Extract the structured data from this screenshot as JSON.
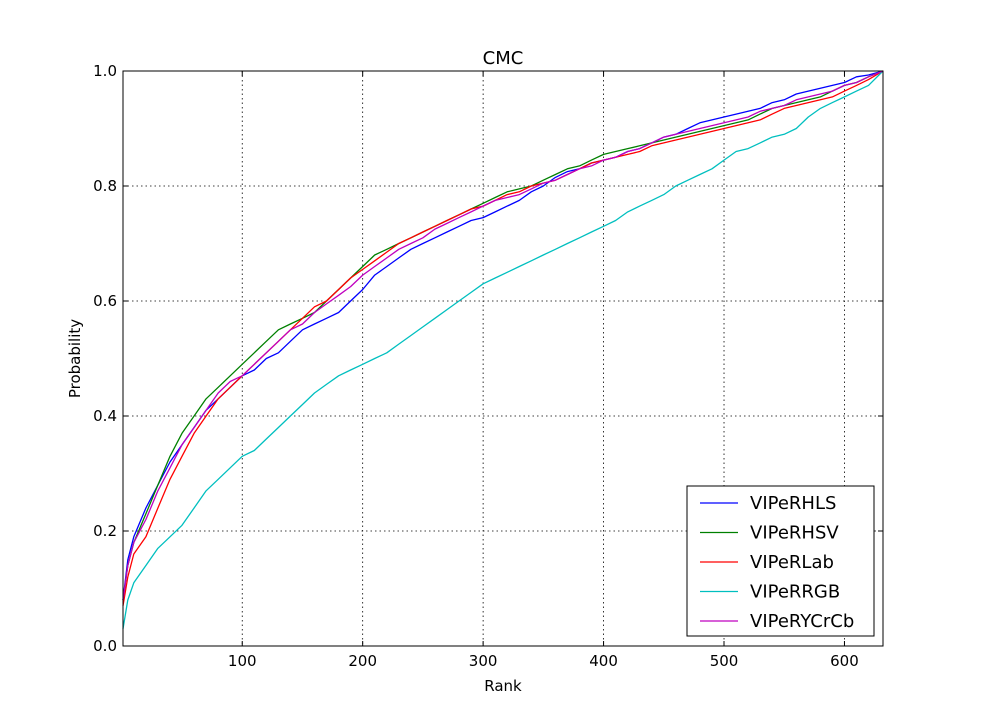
{
  "chart_data": {
    "type": "line",
    "title": "CMC",
    "xlabel": "Rank",
    "ylabel": "Probability",
    "xlim": [
      1,
      632
    ],
    "ylim": [
      0.0,
      1.0
    ],
    "xticks": [
      100,
      200,
      300,
      400,
      500,
      600
    ],
    "xtick_labels": [
      "100",
      "200",
      "300",
      "400",
      "500",
      "600"
    ],
    "yticks": [
      0.0,
      0.2,
      0.4,
      0.6,
      0.8,
      1.0
    ],
    "ytick_labels": [
      "0.0",
      "0.2",
      "0.4",
      "0.6",
      "0.8",
      "1.0"
    ],
    "grid": true,
    "legend_position": "lower-right",
    "series": [
      {
        "name": "VIPeRHLS",
        "color": "#0000ff",
        "x": [
          1,
          5,
          10,
          20,
          30,
          40,
          50,
          60,
          70,
          80,
          90,
          100,
          110,
          120,
          130,
          140,
          150,
          160,
          170,
          180,
          190,
          200,
          210,
          220,
          230,
          240,
          250,
          260,
          270,
          280,
          290,
          300,
          310,
          320,
          330,
          340,
          350,
          360,
          370,
          380,
          390,
          400,
          410,
          420,
          430,
          440,
          450,
          460,
          470,
          480,
          490,
          500,
          510,
          520,
          530,
          540,
          550,
          560,
          570,
          580,
          590,
          600,
          610,
          620,
          632
        ],
        "y": [
          0.08,
          0.15,
          0.19,
          0.24,
          0.28,
          0.32,
          0.35,
          0.38,
          0.41,
          0.43,
          0.45,
          0.47,
          0.48,
          0.5,
          0.51,
          0.53,
          0.55,
          0.56,
          0.57,
          0.58,
          0.6,
          0.62,
          0.645,
          0.66,
          0.675,
          0.69,
          0.7,
          0.71,
          0.72,
          0.73,
          0.74,
          0.745,
          0.755,
          0.765,
          0.775,
          0.79,
          0.8,
          0.815,
          0.825,
          0.83,
          0.84,
          0.845,
          0.85,
          0.86,
          0.865,
          0.875,
          0.885,
          0.89,
          0.9,
          0.91,
          0.915,
          0.92,
          0.925,
          0.93,
          0.935,
          0.945,
          0.95,
          0.96,
          0.965,
          0.97,
          0.975,
          0.98,
          0.99,
          0.993,
          1.0
        ]
      },
      {
        "name": "VIPeRHSV",
        "color": "#008000",
        "x": [
          1,
          5,
          10,
          20,
          30,
          40,
          50,
          60,
          70,
          80,
          90,
          100,
          110,
          120,
          130,
          140,
          150,
          160,
          170,
          180,
          190,
          200,
          210,
          220,
          230,
          240,
          250,
          260,
          270,
          280,
          290,
          300,
          310,
          320,
          330,
          340,
          350,
          360,
          370,
          380,
          390,
          400,
          410,
          420,
          430,
          440,
          450,
          460,
          470,
          480,
          490,
          500,
          510,
          520,
          530,
          540,
          550,
          560,
          570,
          580,
          590,
          600,
          610,
          620,
          632
        ],
        "y": [
          0.08,
          0.14,
          0.18,
          0.23,
          0.28,
          0.33,
          0.37,
          0.4,
          0.43,
          0.45,
          0.47,
          0.49,
          0.51,
          0.53,
          0.55,
          0.56,
          0.57,
          0.58,
          0.6,
          0.62,
          0.64,
          0.66,
          0.68,
          0.69,
          0.7,
          0.71,
          0.72,
          0.73,
          0.74,
          0.75,
          0.76,
          0.77,
          0.78,
          0.79,
          0.795,
          0.8,
          0.81,
          0.82,
          0.83,
          0.835,
          0.845,
          0.855,
          0.86,
          0.865,
          0.87,
          0.875,
          0.88,
          0.885,
          0.89,
          0.895,
          0.9,
          0.905,
          0.91,
          0.915,
          0.925,
          0.935,
          0.94,
          0.945,
          0.95,
          0.955,
          0.965,
          0.975,
          0.98,
          0.99,
          1.0
        ]
      },
      {
        "name": "VIPeRLab",
        "color": "#ff0000",
        "x": [
          1,
          5,
          10,
          20,
          30,
          40,
          50,
          60,
          70,
          80,
          90,
          100,
          110,
          120,
          130,
          140,
          150,
          160,
          170,
          180,
          190,
          200,
          210,
          220,
          230,
          240,
          250,
          260,
          270,
          280,
          290,
          300,
          310,
          320,
          330,
          340,
          350,
          360,
          370,
          380,
          390,
          400,
          410,
          420,
          430,
          440,
          450,
          460,
          470,
          480,
          490,
          500,
          510,
          520,
          530,
          540,
          550,
          560,
          570,
          580,
          590,
          600,
          610,
          620,
          632
        ],
        "y": [
          0.07,
          0.12,
          0.16,
          0.19,
          0.24,
          0.29,
          0.33,
          0.37,
          0.4,
          0.43,
          0.45,
          0.47,
          0.49,
          0.51,
          0.53,
          0.55,
          0.57,
          0.59,
          0.6,
          0.62,
          0.64,
          0.655,
          0.67,
          0.685,
          0.7,
          0.71,
          0.72,
          0.73,
          0.74,
          0.75,
          0.76,
          0.765,
          0.775,
          0.785,
          0.79,
          0.8,
          0.805,
          0.81,
          0.82,
          0.83,
          0.84,
          0.845,
          0.85,
          0.855,
          0.86,
          0.87,
          0.875,
          0.88,
          0.885,
          0.89,
          0.895,
          0.9,
          0.905,
          0.91,
          0.915,
          0.925,
          0.935,
          0.94,
          0.945,
          0.95,
          0.955,
          0.965,
          0.975,
          0.985,
          1.0
        ]
      },
      {
        "name": "VIPeRRGB",
        "color": "#00bfbf",
        "x": [
          1,
          5,
          10,
          20,
          30,
          40,
          50,
          60,
          70,
          80,
          90,
          100,
          110,
          120,
          130,
          140,
          150,
          160,
          170,
          180,
          190,
          200,
          210,
          220,
          230,
          240,
          250,
          260,
          270,
          280,
          290,
          300,
          310,
          320,
          330,
          340,
          350,
          360,
          370,
          380,
          390,
          400,
          410,
          420,
          430,
          440,
          450,
          460,
          470,
          480,
          490,
          500,
          510,
          520,
          530,
          540,
          550,
          560,
          570,
          580,
          590,
          600,
          610,
          620,
          632
        ],
        "y": [
          0.03,
          0.08,
          0.11,
          0.14,
          0.17,
          0.19,
          0.21,
          0.24,
          0.27,
          0.29,
          0.31,
          0.33,
          0.34,
          0.36,
          0.38,
          0.4,
          0.42,
          0.44,
          0.455,
          0.47,
          0.48,
          0.49,
          0.5,
          0.51,
          0.525,
          0.54,
          0.555,
          0.57,
          0.585,
          0.6,
          0.615,
          0.63,
          0.64,
          0.65,
          0.66,
          0.67,
          0.68,
          0.69,
          0.7,
          0.71,
          0.72,
          0.73,
          0.74,
          0.755,
          0.765,
          0.775,
          0.785,
          0.8,
          0.81,
          0.82,
          0.83,
          0.845,
          0.86,
          0.865,
          0.875,
          0.885,
          0.89,
          0.9,
          0.92,
          0.935,
          0.945,
          0.955,
          0.965,
          0.975,
          1.0
        ]
      },
      {
        "name": "VIPeRYCrCb",
        "color": "#bf00bf",
        "x": [
          1,
          5,
          10,
          20,
          30,
          40,
          50,
          60,
          70,
          80,
          90,
          100,
          110,
          120,
          130,
          140,
          150,
          160,
          170,
          180,
          190,
          200,
          210,
          220,
          230,
          240,
          250,
          260,
          270,
          280,
          290,
          300,
          310,
          320,
          330,
          340,
          350,
          360,
          370,
          380,
          390,
          400,
          410,
          420,
          430,
          440,
          450,
          460,
          470,
          480,
          490,
          500,
          510,
          520,
          530,
          540,
          550,
          560,
          570,
          580,
          590,
          600,
          610,
          620,
          632
        ],
        "y": [
          0.08,
          0.14,
          0.18,
          0.22,
          0.27,
          0.31,
          0.35,
          0.38,
          0.41,
          0.44,
          0.46,
          0.47,
          0.49,
          0.51,
          0.53,
          0.55,
          0.56,
          0.58,
          0.595,
          0.61,
          0.625,
          0.645,
          0.66,
          0.675,
          0.69,
          0.7,
          0.71,
          0.725,
          0.735,
          0.745,
          0.755,
          0.765,
          0.775,
          0.78,
          0.785,
          0.795,
          0.805,
          0.81,
          0.82,
          0.83,
          0.835,
          0.845,
          0.85,
          0.86,
          0.865,
          0.875,
          0.885,
          0.89,
          0.895,
          0.9,
          0.905,
          0.91,
          0.915,
          0.92,
          0.93,
          0.935,
          0.94,
          0.95,
          0.955,
          0.96,
          0.965,
          0.975,
          0.98,
          0.99,
          1.0
        ]
      }
    ]
  }
}
